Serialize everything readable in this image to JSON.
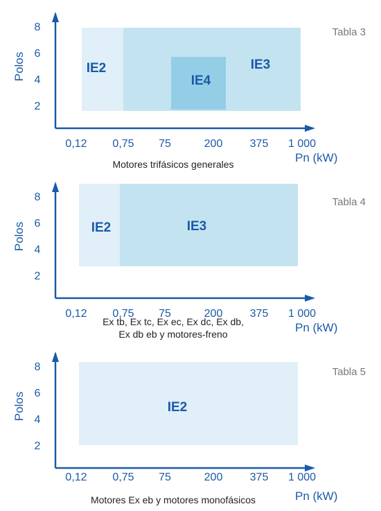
{
  "panels": [
    {
      "table_label": "Tabla 3",
      "caption_lines": [
        "Motores trifásicos generales"
      ],
      "y_axis_label": "Polos",
      "x_axis_label": "Pn (kW)",
      "y_ticks": [
        "8",
        "6",
        "4",
        "2"
      ],
      "x_ticks": [
        "0,12",
        "0,75",
        "75",
        "200",
        "375",
        "1 000"
      ],
      "regions": [
        {
          "label": "IE2",
          "x_from": "0,12",
          "x_to": "0,75",
          "color": "#e0eff8"
        },
        {
          "label": "IE3",
          "x_from": "0,75",
          "x_to": "1 000",
          "color": "#c3e3f0"
        },
        {
          "label": "IE4",
          "x_from": "75",
          "x_to": "200",
          "color": "#94cde6"
        }
      ]
    },
    {
      "table_label": "Tabla 4",
      "caption_lines": [
        "Ex tb, Ex tc, Ex ec, Ex dc, Ex db,",
        "Ex db eb y motores-freno"
      ],
      "y_axis_label": "Polos",
      "x_axis_label": "Pn (kW)",
      "y_ticks": [
        "8",
        "6",
        "4",
        "2"
      ],
      "x_ticks": [
        "0,12",
        "0,75",
        "75",
        "200",
        "375",
        "1 000"
      ],
      "regions": [
        {
          "label": "IE2",
          "x_from": "0,12",
          "x_to": "0,75",
          "color": "#e0eff8"
        },
        {
          "label": "IE3",
          "x_from": "0,75",
          "x_to": "1 000",
          "color": "#c3e3f0"
        }
      ]
    },
    {
      "table_label": "Tabla 5",
      "caption_lines": [
        "Motores Ex eb y motores monofásicos"
      ],
      "y_axis_label": "Polos",
      "x_axis_label": "Pn (kW)",
      "y_ticks": [
        "8",
        "6",
        "4",
        "2"
      ],
      "x_ticks": [
        "0,12",
        "0,75",
        "75",
        "200",
        "375",
        "1 000"
      ],
      "regions": [
        {
          "label": "IE2",
          "x_from": "0,12",
          "x_to": "1 000",
          "color": "#e0eff8"
        }
      ]
    }
  ],
  "colors": {
    "axis": "#1a5aa6",
    "label": "#1a5aa6",
    "region_text": "#1a5aa6"
  }
}
